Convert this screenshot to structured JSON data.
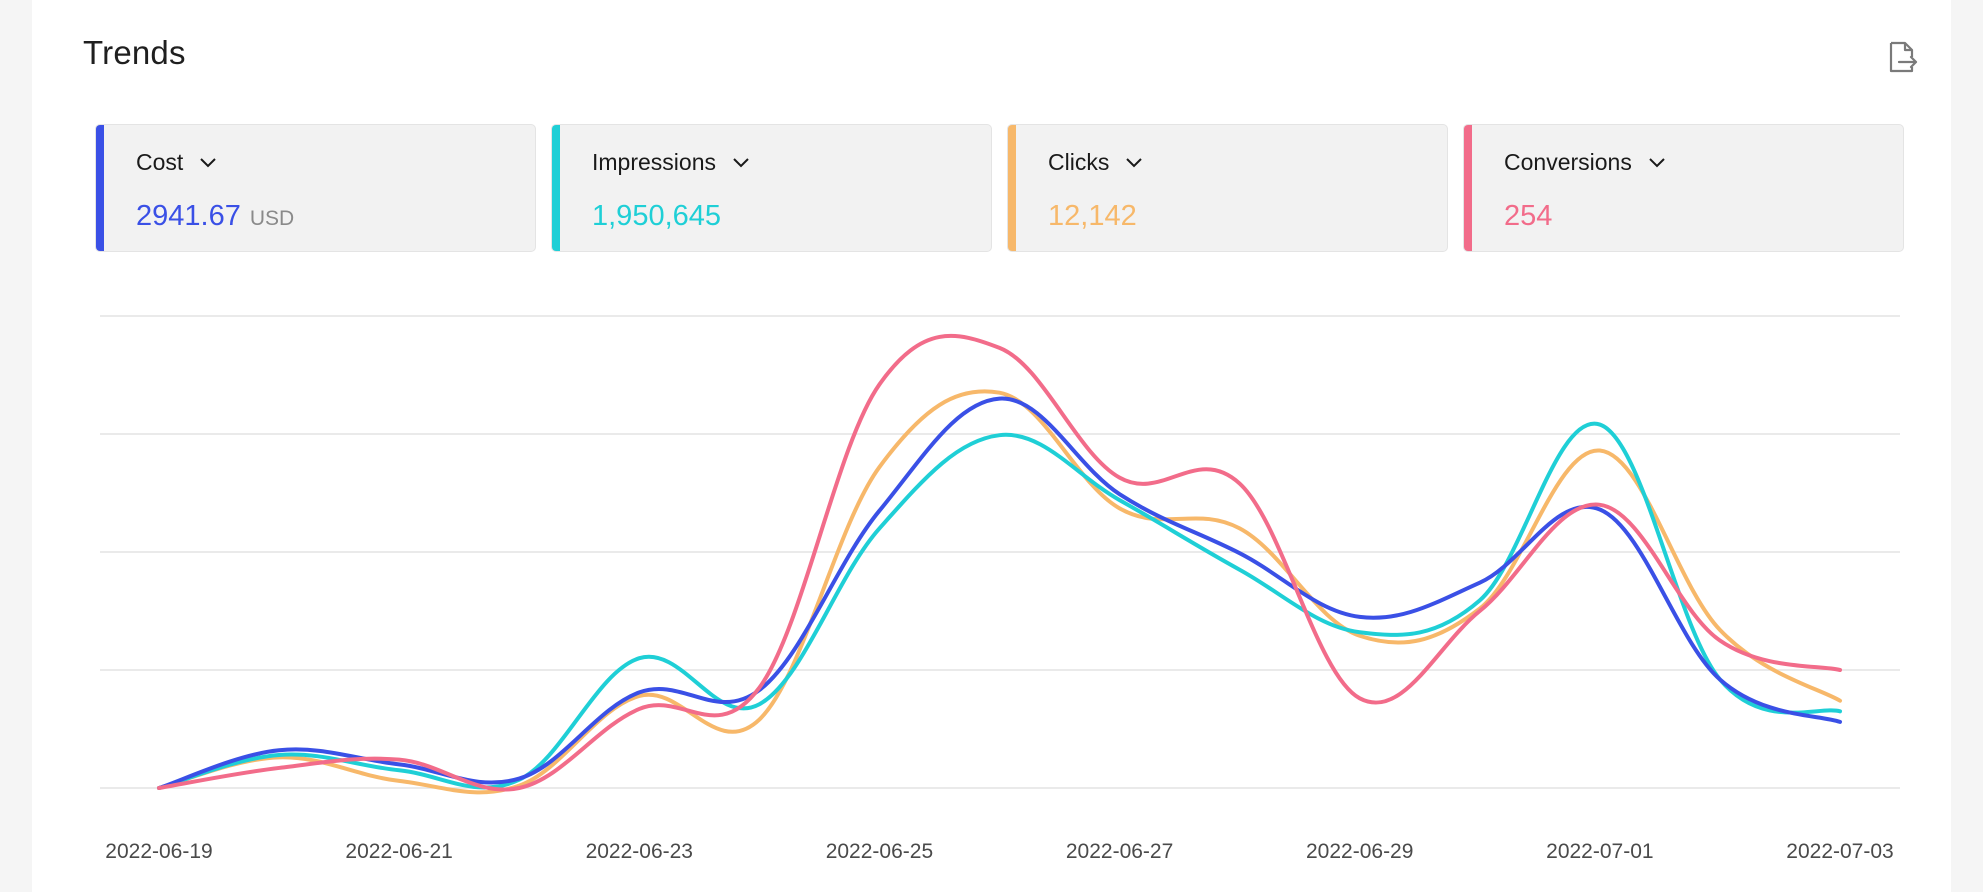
{
  "header": {
    "title": "Trends",
    "export_icon": "export-file-icon"
  },
  "metrics": [
    {
      "label": "Cost",
      "value": "2941.67",
      "unit": "USD",
      "color": "#3a50e6"
    },
    {
      "label": "Impressions",
      "value": "1,950,645",
      "unit": "",
      "color": "#1fcfd6"
    },
    {
      "label": "Clicks",
      "value": "12,142",
      "unit": "",
      "color": "#f7b86a"
    },
    {
      "label": "Conversions",
      "value": "254",
      "unit": "",
      "color": "#f26c8a"
    }
  ],
  "chart_data": {
    "type": "line",
    "x_ticks": [
      "2022-06-19",
      "2022-06-21",
      "2022-06-23",
      "2022-06-25",
      "2022-06-27",
      "2022-06-29",
      "2022-07-01",
      "2022-07-03"
    ],
    "x": [
      "2022-06-19",
      "2022-06-20",
      "2022-06-21",
      "2022-06-22",
      "2022-06-23",
      "2022-06-24",
      "2022-06-25",
      "2022-06-26",
      "2022-06-27",
      "2022-06-28",
      "2022-06-29",
      "2022-06-30",
      "2022-07-01",
      "2022-07-02",
      "2022-07-03"
    ],
    "grid": true,
    "y_axis_visible": false,
    "ylim": [
      0,
      4
    ],
    "series": [
      {
        "color": "#3a50e6",
        "values": [
          0.0,
          0.32,
          0.2,
          0.08,
          0.81,
          0.83,
          2.35,
          3.3,
          2.49,
          1.99,
          1.45,
          1.74,
          2.36,
          0.92,
          0.56
        ]
      },
      {
        "color": "#1fcfd6",
        "values": [
          0.0,
          0.28,
          0.15,
          0.07,
          1.1,
          0.71,
          2.2,
          2.99,
          2.44,
          1.85,
          1.32,
          1.59,
          3.08,
          0.92,
          0.65
        ]
      },
      {
        "color": "#f7b86a",
        "values": [
          0.0,
          0.26,
          0.06,
          0.02,
          0.78,
          0.58,
          2.72,
          3.35,
          2.37,
          2.2,
          1.29,
          1.52,
          2.86,
          1.34,
          0.74
        ]
      },
      {
        "color": "#f26c8a",
        "values": [
          0.0,
          0.17,
          0.24,
          0.0,
          0.67,
          0.85,
          3.42,
          3.73,
          2.63,
          2.58,
          0.76,
          1.5,
          2.4,
          1.25,
          1.0
        ]
      }
    ]
  }
}
